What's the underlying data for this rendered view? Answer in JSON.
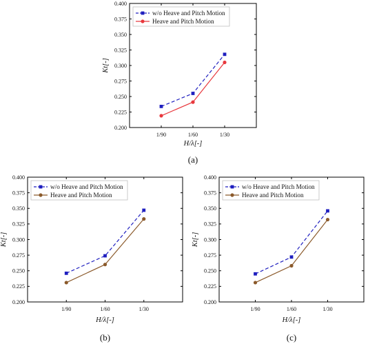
{
  "chart_data": [
    {
      "type": "line",
      "panel_label": "(a)",
      "xlabel": "H/λ[-]",
      "ylabel": "Kt[-]",
      "categories": [
        "1/90",
        "1/60",
        "1/30"
      ],
      "ylim": [
        0.2,
        0.4
      ],
      "yticks": [
        "0.200",
        "0.225",
        "0.250",
        "0.275",
        "0.300",
        "0.325",
        "0.350",
        "0.375",
        "0.400"
      ],
      "legend_position": "top-left",
      "grid": false,
      "series": [
        {
          "name": "w/o Heave and Pitch Motion",
          "values": [
            0.234,
            0.255,
            0.318
          ],
          "color": "#1f1fbf",
          "style": "dashed",
          "marker": "square"
        },
        {
          "name": "Heave and Pitch Motion",
          "values": [
            0.219,
            0.241,
            0.305
          ],
          "color": "#e8383d",
          "style": "solid",
          "marker": "circle"
        }
      ]
    },
    {
      "type": "line",
      "panel_label": "(b)",
      "xlabel": "H/λ[-]",
      "ylabel": "Kt[-]",
      "categories": [
        "1/90",
        "1/60",
        "1/30"
      ],
      "ylim": [
        0.2,
        0.4
      ],
      "yticks": [
        "0.200",
        "0.225",
        "0.250",
        "0.275",
        "0.300",
        "0.325",
        "0.350",
        "0.375",
        "0.400"
      ],
      "legend_position": "top-left",
      "grid": false,
      "series": [
        {
          "name": "w/o Heave and Pitch Motion",
          "values": [
            0.246,
            0.274,
            0.347
          ],
          "color": "#1f1fbf",
          "style": "dashed",
          "marker": "square"
        },
        {
          "name": "Heave and Pitch Motion",
          "values": [
            0.231,
            0.26,
            0.333
          ],
          "color": "#8b5a2b",
          "style": "solid",
          "marker": "circle"
        }
      ]
    },
    {
      "type": "line",
      "panel_label": "(c)",
      "xlabel": "H/λ[-]",
      "ylabel": "Kt[-]",
      "categories": [
        "1/90",
        "1/60",
        "1/30"
      ],
      "ylim": [
        0.2,
        0.4
      ],
      "yticks": [
        "0.200",
        "0.225",
        "0.250",
        "0.275",
        "0.300",
        "0.325",
        "0.350",
        "0.375",
        "0.400"
      ],
      "legend_position": "top-left",
      "grid": false,
      "series": [
        {
          "name": "w/o Heave and Pitch Motion",
          "values": [
            0.245,
            0.272,
            0.346
          ],
          "color": "#1f1fbf",
          "style": "dashed",
          "marker": "square"
        },
        {
          "name": "Heave and Pitch Motion",
          "values": [
            0.231,
            0.258,
            0.332
          ],
          "color": "#8b5a2b",
          "style": "solid",
          "marker": "circle"
        }
      ]
    }
  ]
}
